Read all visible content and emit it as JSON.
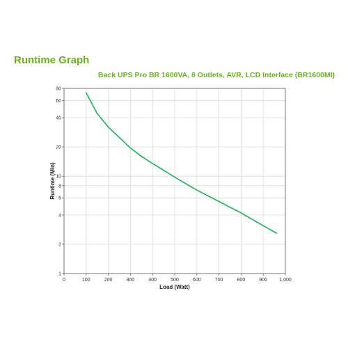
{
  "header": {
    "title": "Runtime Graph",
    "subtitle": "Back UPS Pro BR 1600VA, 8 Outlets, AVR, LCD Interface (BR1600MI)"
  },
  "colors": {
    "accent": "#6bb024",
    "series_line": "#1fae5a",
    "grid": "#d8d8d8",
    "axis": "#555555"
  },
  "chart_data": {
    "type": "line",
    "title": "",
    "xlabel": "Load (Watt)",
    "ylabel": "Runtime (Min)",
    "xlim": [
      0,
      1000
    ],
    "ylim": [
      1,
      80
    ],
    "yscale": "log",
    "grid": true,
    "x_ticks": [
      0,
      100,
      200,
      300,
      400,
      500,
      600,
      700,
      800,
      900,
      1000
    ],
    "x_tick_labels": [
      "0",
      "100",
      "200",
      "300",
      "400",
      "500",
      "600",
      "700",
      "800",
      "900",
      "1,000"
    ],
    "y_ticks": [
      1,
      2,
      4,
      6,
      8,
      10,
      20,
      40,
      60,
      80
    ],
    "y_tick_labels": [
      "1",
      "2",
      "4",
      "6",
      "8",
      "10",
      "20",
      "40",
      "60",
      "80"
    ],
    "series": [
      {
        "name": "",
        "x": [
          100,
          150,
          200,
          250,
          300,
          350,
          400,
          450,
          500,
          550,
          600,
          650,
          700,
          750,
          800,
          850,
          900,
          960
        ],
        "y": [
          72,
          44,
          32,
          25,
          19.5,
          16,
          13.5,
          11.5,
          9.8,
          8.4,
          7.2,
          6.3,
          5.5,
          4.8,
          4.2,
          3.6,
          3.1,
          2.6
        ]
      }
    ]
  }
}
